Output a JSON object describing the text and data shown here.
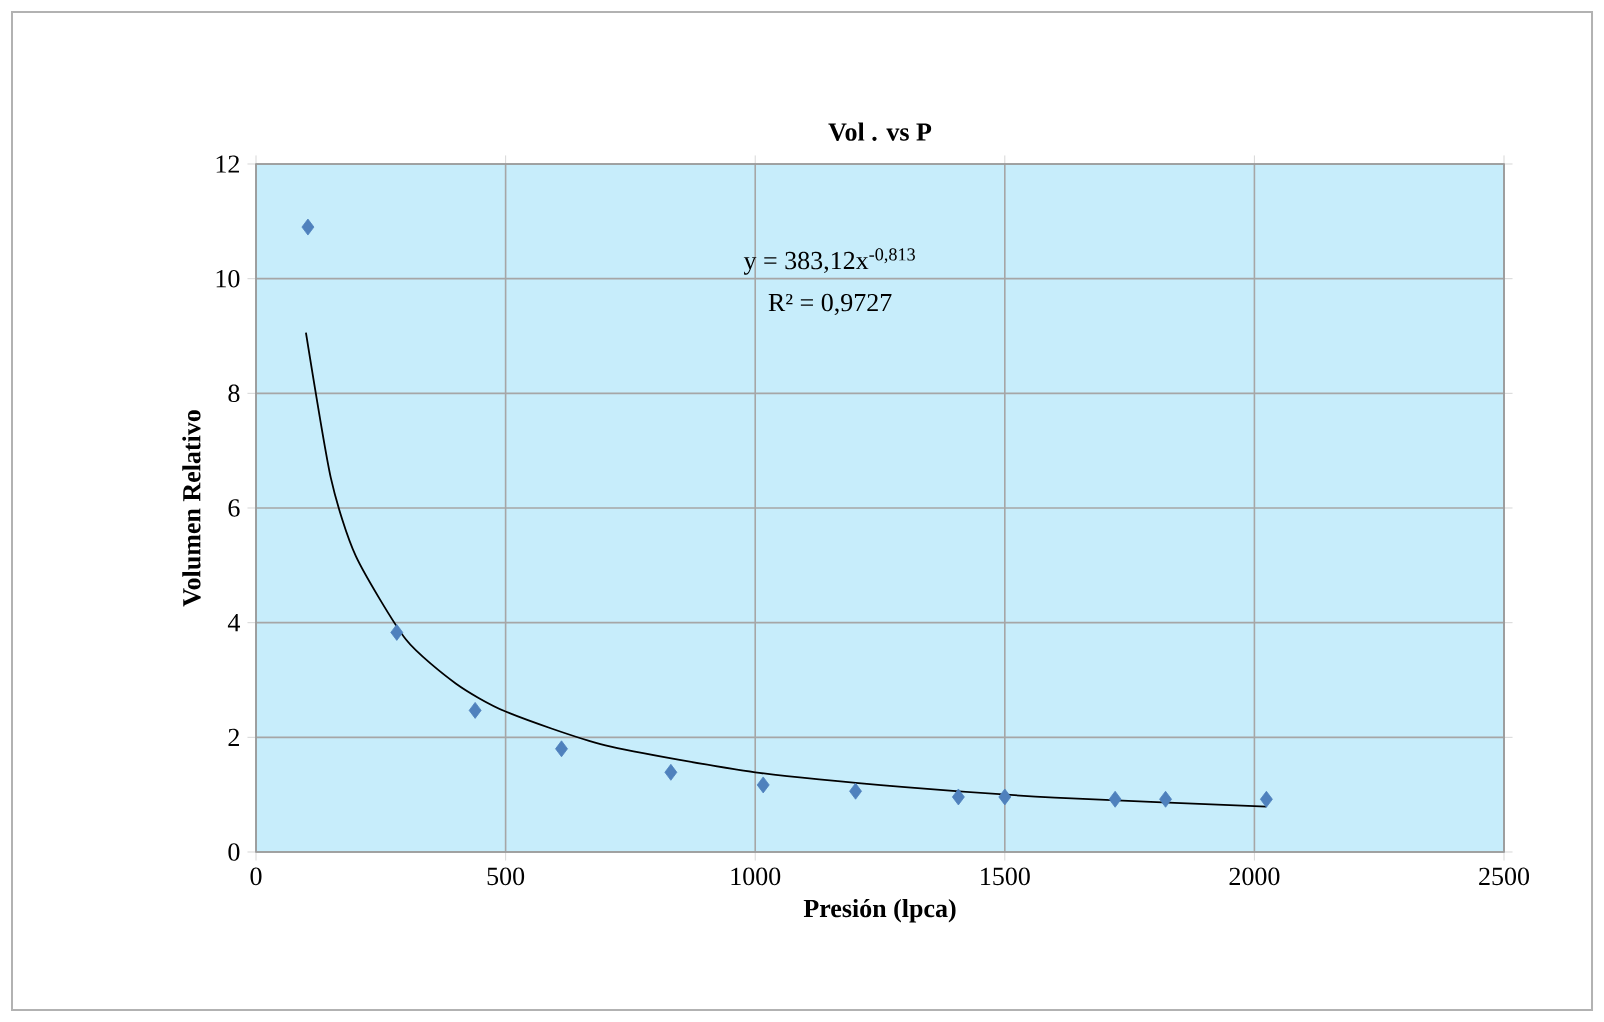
{
  "chart_data": {
    "type": "scatter",
    "title": "Vol . vs P",
    "xlabel": "Presión (lpca)",
    "ylabel": "Volumen Relativo",
    "annotations": [
      "y = 383,12x$^{-0,813}$",
      "R² = 0,9727"
    ],
    "xlim": [
      0,
      2500
    ],
    "xticks": [
      0,
      500,
      1000,
      1500,
      2000,
      2500
    ],
    "ylim": [
      0,
      12
    ],
    "yticks": [
      0,
      2,
      4,
      6,
      8,
      10,
      12
    ],
    "grid": true,
    "series": [
      {
        "color": "#4f81bd",
        "marker": "diamond",
        "x": [
          104,
          282,
          439,
          612,
          831,
          1016,
          1201,
          1407,
          1500,
          1721,
          1822,
          2024
        ],
        "values": [
          10.9,
          3.83,
          2.47,
          1.8,
          1.39,
          1.17,
          1.06,
          0.96,
          0.96,
          0.92,
          0.92,
          0.92
        ]
      },
      {
        "type": "line",
        "color": "#000000",
        "marker": "none",
        "line_style": "solid",
        "x": [
          100,
          150,
          200,
          300,
          400,
          500,
          700,
          1000,
          1300,
          1600,
          2024
        ],
        "values": [
          9.06,
          6.52,
          5.16,
          3.71,
          2.94,
          2.45,
          1.86,
          1.39,
          1.13,
          0.95,
          0.79
        ]
      }
    ]
  }
}
